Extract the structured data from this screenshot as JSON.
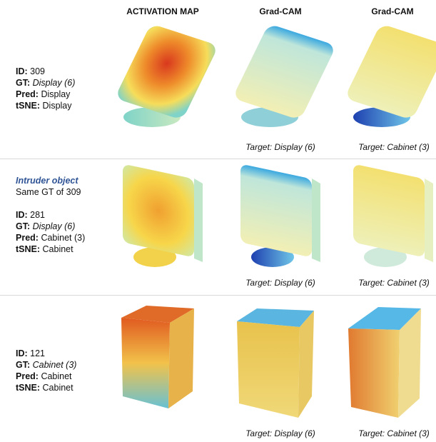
{
  "header": {
    "columns": [
      "ACTIVATION MAP",
      "Grad-CAM",
      "Grad-CAM"
    ]
  },
  "rows": [
    {
      "fields": [
        {
          "label": "ID:",
          "value": "309"
        },
        {
          "label": "GT:",
          "value": "Display (6)"
        },
        {
          "label": "Pred:",
          "value": "Display"
        },
        {
          "label": "tSNE:",
          "value": "Display"
        }
      ],
      "targets": [
        "Target: Display (6)",
        "Target: Cabinet (3)"
      ]
    },
    {
      "note": {
        "title": "Intruder object",
        "subtitle": "Same GT of 309"
      },
      "fields": [
        {
          "label": "ID:",
          "value": "281"
        },
        {
          "label": "GT:",
          "value": "Display (6)"
        },
        {
          "label": "Pred:",
          "value": "Cabinet (3)"
        },
        {
          "label": "tSNE:",
          "value": "Cabinet"
        }
      ],
      "targets": [
        "Target: Display (6)",
        "Target: Cabinet (3)"
      ]
    },
    {
      "fields": [
        {
          "label": "ID:",
          "value": "121"
        },
        {
          "label": "GT:",
          "value": "Cabinet (3)"
        },
        {
          "label": "Pred:",
          "value": "Cabinet"
        },
        {
          "label": "tSNE:",
          "value": "Cabinet"
        }
      ],
      "targets": [
        "Target: Display (6)",
        "Target: Cabinet (3)"
      ]
    }
  ]
}
